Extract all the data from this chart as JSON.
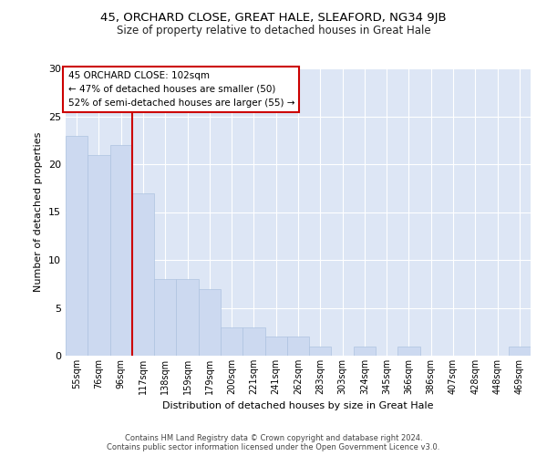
{
  "title1": "45, ORCHARD CLOSE, GREAT HALE, SLEAFORD, NG34 9JB",
  "title2": "Size of property relative to detached houses in Great Hale",
  "xlabel": "Distribution of detached houses by size in Great Hale",
  "ylabel": "Number of detached properties",
  "categories": [
    "55sqm",
    "76sqm",
    "96sqm",
    "117sqm",
    "138sqm",
    "159sqm",
    "179sqm",
    "200sqm",
    "221sqm",
    "241sqm",
    "262sqm",
    "283sqm",
    "303sqm",
    "324sqm",
    "345sqm",
    "366sqm",
    "386sqm",
    "407sqm",
    "428sqm",
    "448sqm",
    "469sqm"
  ],
  "values": [
    23,
    21,
    22,
    17,
    8,
    8,
    7,
    3,
    3,
    2,
    2,
    1,
    0,
    1,
    0,
    1,
    0,
    0,
    0,
    0,
    1
  ],
  "bar_color": "#ccd9f0",
  "bar_edge_color": "#aec3e0",
  "vline_index": 2.5,
  "marker_label": "45 ORCHARD CLOSE: 102sqm",
  "annotation_line1": "← 47% of detached houses are smaller (50)",
  "annotation_line2": "52% of semi-detached houses are larger (55) →",
  "vline_color": "#cc0000",
  "annotation_box_color": "#ffffff",
  "annotation_box_edge": "#cc0000",
  "ylim": [
    0,
    30
  ],
  "yticks": [
    0,
    5,
    10,
    15,
    20,
    25,
    30
  ],
  "footer1": "Contains HM Land Registry data © Crown copyright and database right 2024.",
  "footer2": "Contains public sector information licensed under the Open Government Licence v3.0.",
  "plot_bg_color": "#dde6f5"
}
